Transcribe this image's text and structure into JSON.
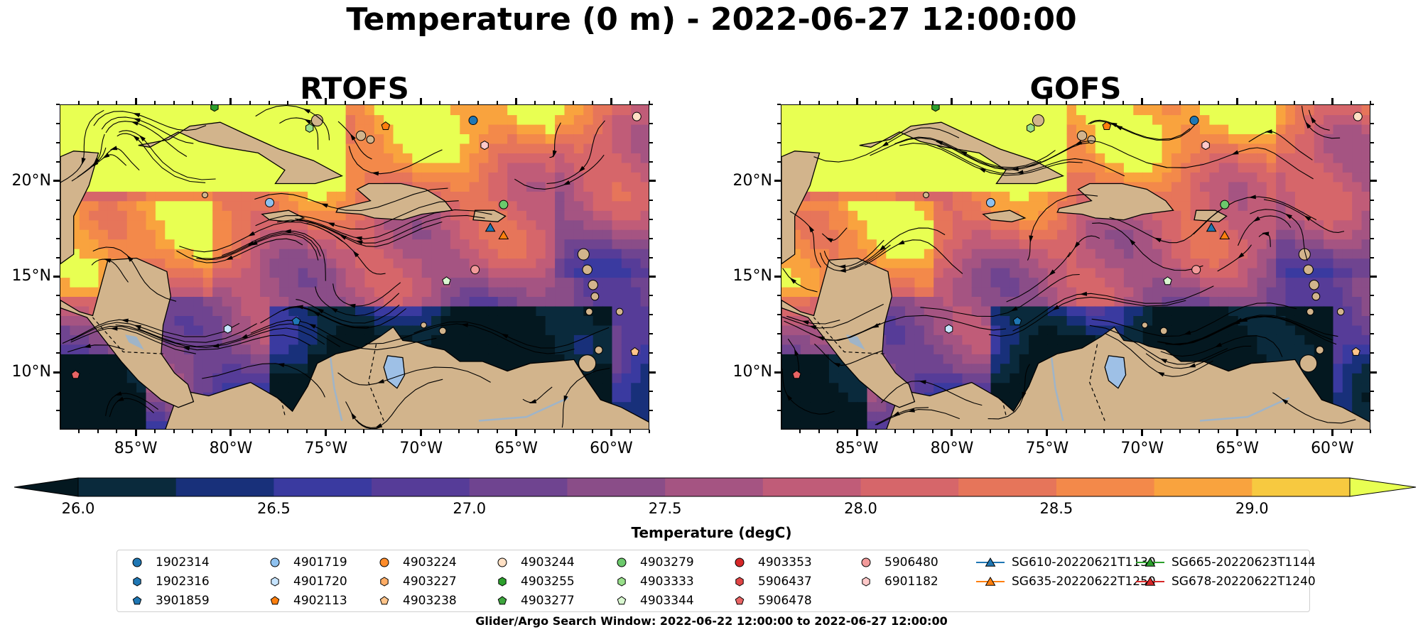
{
  "figure": {
    "title": "Temperature (0 m) - 2022-06-27 12:00:00",
    "footnote": "Glider/Argo Search Window: 2022-06-22 12:00:00 to 2022-06-27 12:00:00"
  },
  "chart_data": {
    "type": "heatmap",
    "panels": [
      {
        "name": "RTOFS",
        "title": "RTOFS"
      },
      {
        "name": "GOFS",
        "title": "GOFS"
      }
    ],
    "xlim": [
      -89,
      -58
    ],
    "ylim": [
      7,
      24
    ],
    "x_ticks": [
      -85,
      -80,
      -75,
      -70,
      -65,
      -60
    ],
    "x_tick_labels": [
      "85°W",
      "80°W",
      "75°W",
      "70°W",
      "65°W",
      "60°W"
    ],
    "y_ticks": [
      10,
      15,
      20
    ],
    "y_tick_labels": [
      "10°N",
      "15°N",
      "20°N"
    ],
    "grid": false,
    "colorbar": {
      "label": "Temperature (degC)",
      "vmin": 26.0,
      "vmax": 29.0,
      "step": 0.25,
      "ticks": [
        26.0,
        26.5,
        27.0,
        27.5,
        28.0,
        28.5,
        29.0
      ],
      "tick_labels": [
        "26.0",
        "26.5",
        "27.0",
        "27.5",
        "28.0",
        "28.5",
        "29.0"
      ],
      "extend": "both",
      "colors": [
        "#0a2a3c",
        "#18307a",
        "#3a3aa0",
        "#563c98",
        "#6f4490",
        "#8a4d88",
        "#a55482",
        "#c05c78",
        "#d6666a",
        "#e6755a",
        "#f3894a",
        "#f9a33e",
        "#f7c940"
      ],
      "under_color": "#041820",
      "over_color": "#e8ff52"
    },
    "land_color": "#d2b48c",
    "legend_placement": "bottom",
    "legend": [
      {
        "label": "1902314",
        "marker": "circle",
        "color": "#1f77b4"
      },
      {
        "label": "1902316",
        "marker": "hexagon",
        "color": "#1f77b4"
      },
      {
        "label": "3901859",
        "marker": "pentagon",
        "color": "#1f77b4"
      },
      {
        "label": "4901719",
        "marker": "circle",
        "color": "#8ec1ef"
      },
      {
        "label": "4901720",
        "marker": "hexagon",
        "color": "#c6e4ff"
      },
      {
        "label": "4902113",
        "marker": "pentagon",
        "color": "#ff7f0e"
      },
      {
        "label": "4903224",
        "marker": "circle",
        "color": "#ff8c2a"
      },
      {
        "label": "4903227",
        "marker": "hexagon",
        "color": "#ffad66"
      },
      {
        "label": "4903238",
        "marker": "pentagon",
        "color": "#ffc48a"
      },
      {
        "label": "4903244",
        "marker": "circle",
        "color": "#ffe0c4"
      },
      {
        "label": "4903255",
        "marker": "hexagon",
        "color": "#2ca02c"
      },
      {
        "label": "4903277",
        "marker": "pentagon",
        "color": "#3ea63e"
      },
      {
        "label": "4903279",
        "marker": "circle",
        "color": "#6cc96c"
      },
      {
        "label": "4903333",
        "marker": "hexagon",
        "color": "#98df8a"
      },
      {
        "label": "4903344",
        "marker": "pentagon",
        "color": "#d9f7d0"
      },
      {
        "label": "4903353",
        "marker": "circle",
        "color": "#d62728"
      },
      {
        "label": "5906437",
        "marker": "hexagon",
        "color": "#e04545"
      },
      {
        "label": "5906478",
        "marker": "pentagon",
        "color": "#e86464"
      },
      {
        "label": "5906480",
        "marker": "circle",
        "color": "#f29a9a"
      },
      {
        "label": "6901182",
        "marker": "hexagon",
        "color": "#ffc9c9"
      },
      {
        "label": "SG610-20220621T1130",
        "marker": "triangle-line",
        "color": "#1f77b4"
      },
      {
        "label": "SG635-20220622T1250",
        "marker": "triangle-line",
        "color": "#ff7f0e"
      },
      {
        "label": "SG665-20220623T1144",
        "marker": "triangle-line",
        "color": "#2ca02c"
      },
      {
        "label": "SG678-20220622T1240",
        "marker": "triangle-line",
        "color": "#d62728"
      }
    ],
    "markers": [
      {
        "label": "1902314",
        "lon": -67.3,
        "lat": 23.2
      },
      {
        "label": "6901182",
        "lon": -66.7,
        "lat": 21.9
      },
      {
        "label": "4901719",
        "lon": -78.0,
        "lat": 18.9
      },
      {
        "label": "4903279",
        "lon": -65.7,
        "lat": 18.8
      },
      {
        "label": "SG610-20220621T1130",
        "lon": -66.4,
        "lat": 17.6
      },
      {
        "label": "SG635-20220622T1250",
        "lon": -65.7,
        "lat": 17.2
      },
      {
        "label": "4903344",
        "lon": -68.7,
        "lat": 14.8
      },
      {
        "label": "5906480",
        "lon": -67.2,
        "lat": 15.4
      },
      {
        "label": "3901859",
        "lon": -76.6,
        "lat": 12.7
      },
      {
        "label": "4901720",
        "lon": -80.2,
        "lat": 12.3
      },
      {
        "label": "5906478",
        "lon": -88.2,
        "lat": 9.9
      },
      {
        "label": "4903238",
        "lon": -58.8,
        "lat": 11.1
      },
      {
        "label": "4903244",
        "lon": -58.7,
        "lat": 23.4
      },
      {
        "label": "4903333",
        "lon": -75.9,
        "lat": 22.8
      },
      {
        "label": "4903255",
        "lon": -80.9,
        "lat": 23.9
      },
      {
        "label": "4902113",
        "lon": -71.9,
        "lat": 22.9
      }
    ]
  }
}
